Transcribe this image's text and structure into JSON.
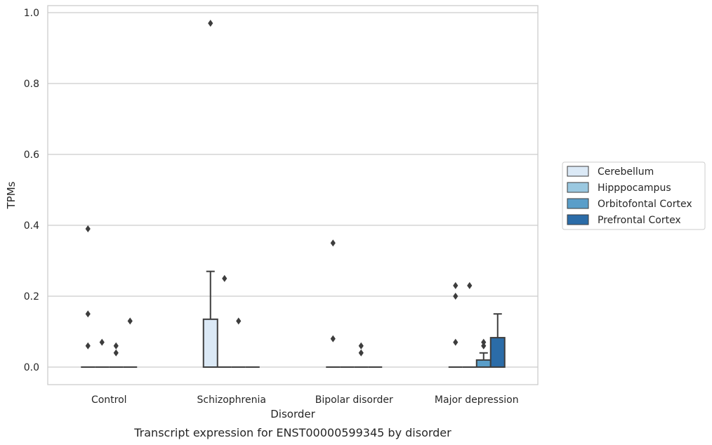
{
  "caption": "Transcript expression for ENST00000599345 by disorder",
  "chart_data": {
    "type": "box",
    "title": "",
    "xlabel": "Disorder",
    "ylabel": "TPMs",
    "ylim": [
      -0.045,
      1.02
    ],
    "yticks": [
      0.0,
      0.2,
      0.4,
      0.6,
      0.8,
      1.0
    ],
    "ytick_labels": [
      "0.0",
      "0.2",
      "0.4",
      "0.6",
      "0.8",
      "1.0"
    ],
    "grid": true,
    "legend_position": "right",
    "categories": [
      "Control",
      "Schizophrenia",
      "Bipolar disorder",
      "Major depression"
    ],
    "series": [
      {
        "name": "Cerebellum",
        "color": "#dbe9f6",
        "boxes": [
          {
            "q1": 0,
            "median": 0,
            "q3": 0,
            "whisker_low": 0,
            "whisker_high": 0,
            "outliers": [
              0.39,
              0.15,
              0.06
            ]
          },
          {
            "q1": 0,
            "median": 0,
            "q3": 0.135,
            "whisker_low": 0,
            "whisker_high": 0.27,
            "outliers": [
              0.97
            ]
          },
          {
            "q1": 0,
            "median": 0,
            "q3": 0,
            "whisker_low": 0,
            "whisker_high": 0,
            "outliers": [
              0.35,
              0.08
            ]
          },
          {
            "q1": 0,
            "median": 0,
            "q3": 0,
            "whisker_low": 0,
            "whisker_high": 0,
            "outliers": [
              0.23,
              0.2,
              0.07
            ]
          }
        ]
      },
      {
        "name": "Hipppocampus",
        "color": "#9ac8e0",
        "boxes": [
          {
            "q1": 0,
            "median": 0,
            "q3": 0,
            "whisker_low": 0,
            "whisker_high": 0,
            "outliers": [
              0.07
            ]
          },
          {
            "q1": 0,
            "median": 0,
            "q3": 0,
            "whisker_low": 0,
            "whisker_high": 0,
            "outliers": [
              0.25
            ]
          },
          {
            "q1": 0,
            "median": 0,
            "q3": 0,
            "whisker_low": 0,
            "whisker_high": 0,
            "outliers": []
          },
          {
            "q1": 0,
            "median": 0,
            "q3": 0,
            "whisker_low": 0,
            "whisker_high": 0,
            "outliers": [
              0.23
            ]
          }
        ]
      },
      {
        "name": "Orbitofontal Cortex",
        "color": "#5a9ec9",
        "boxes": [
          {
            "q1": 0,
            "median": 0,
            "q3": 0,
            "whisker_low": 0,
            "whisker_high": 0,
            "outliers": [
              0.06,
              0.04
            ]
          },
          {
            "q1": 0,
            "median": 0,
            "q3": 0,
            "whisker_low": 0,
            "whisker_high": 0,
            "outliers": [
              0.13
            ]
          },
          {
            "q1": 0,
            "median": 0,
            "q3": 0,
            "whisker_low": 0,
            "whisker_high": 0,
            "outliers": [
              0.06,
              0.04
            ]
          },
          {
            "q1": 0,
            "median": 0,
            "q3": 0.02,
            "whisker_low": 0,
            "whisker_high": 0.04,
            "outliers": [
              0.07,
              0.06
            ]
          }
        ]
      },
      {
        "name": "Prefrontal Cortex",
        "color": "#2b6ca8",
        "boxes": [
          {
            "q1": 0,
            "median": 0,
            "q3": 0,
            "whisker_low": 0,
            "whisker_high": 0,
            "outliers": [
              0.13
            ]
          },
          {
            "q1": 0,
            "median": 0,
            "q3": 0,
            "whisker_low": 0,
            "whisker_high": 0,
            "outliers": []
          },
          {
            "q1": 0,
            "median": 0,
            "q3": 0,
            "whisker_low": 0,
            "whisker_high": 0,
            "outliers": []
          },
          {
            "q1": 0,
            "median": 0,
            "q3": 0.083,
            "whisker_low": 0,
            "whisker_high": 0.15,
            "outliers": []
          }
        ]
      }
    ]
  }
}
